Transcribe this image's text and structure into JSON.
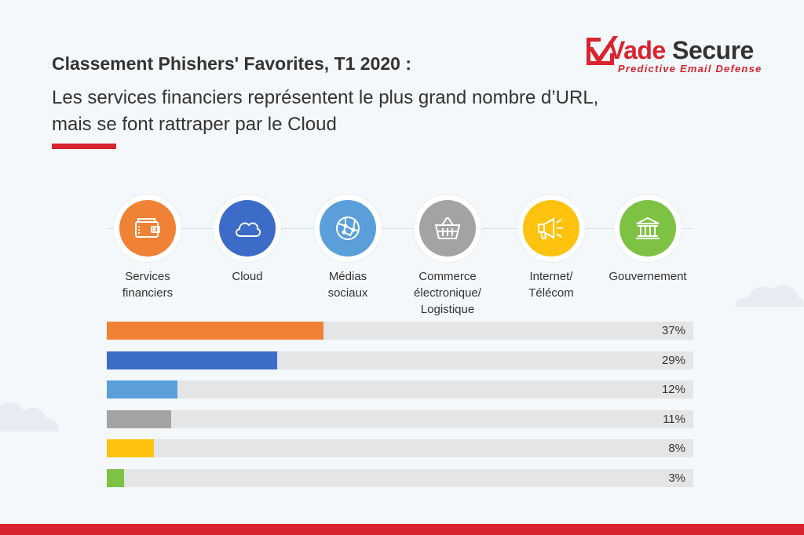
{
  "header": {
    "title": "Classement Phishers' Favorites, T1 2020 :",
    "subtitle": "Les services financiers représentent le plus grand nombre d’URL, mais se font rattraper par le Cloud"
  },
  "logo": {
    "name_part1": "Vade",
    "name_part2": "Secure",
    "tagline": "Predictive Email Defense"
  },
  "categories": [
    {
      "label": "Services financiers",
      "icon": "wallet-icon",
      "color": "#f08236"
    },
    {
      "label": "Cloud",
      "icon": "cloud-icon",
      "color": "#3d6cc8"
    },
    {
      "label": "Médias sociaux",
      "icon": "globe-icon",
      "color": "#5a9fda"
    },
    {
      "label": "Commerce électronique/ Logistique",
      "icon": "basket-icon",
      "color": "#a3a3a3"
    },
    {
      "label": "Internet/ Télécom",
      "icon": "megaphone-icon",
      "color": "#ffc20e"
    },
    {
      "label": "Gouvernement",
      "icon": "government-building-icon",
      "color": "#7dc242"
    }
  ],
  "chart_data": {
    "type": "bar",
    "orientation": "horizontal",
    "categories": [
      "Services financiers",
      "Cloud",
      "Médias sociaux",
      "Commerce électronique/ Logistique",
      "Internet/ Télécom",
      "Gouvernement"
    ],
    "values": [
      37,
      29,
      12,
      11,
      8,
      3
    ],
    "value_labels": [
      "37%",
      "29%",
      "12%",
      "11%",
      "8%",
      "3%"
    ],
    "colors": [
      "#f08236",
      "#3d6cc8",
      "#5a9fda",
      "#a3a3a3",
      "#ffc20e",
      "#7dc242"
    ],
    "xlim": [
      0,
      100
    ],
    "grid": false
  },
  "colors": {
    "accent": "#d9232e",
    "track": "#e3e5e7",
    "background": "#f4f8fb"
  }
}
